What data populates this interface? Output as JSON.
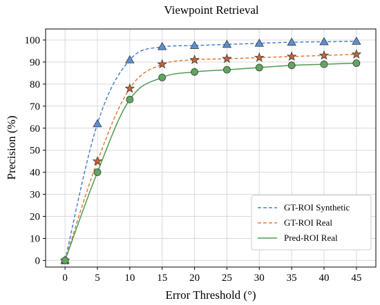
{
  "chart_data": {
    "type": "line",
    "title": "Viewpoint Retrieval",
    "xlabel": "Error Threshold (°)",
    "ylabel": "Precision (%)",
    "xlim": [
      -3,
      48
    ],
    "ylim": [
      -3,
      105
    ],
    "xticks": [
      0,
      5,
      10,
      15,
      20,
      25,
      30,
      35,
      40,
      45
    ],
    "yticks": [
      0,
      10,
      20,
      30,
      40,
      50,
      60,
      70,
      80,
      90,
      100
    ],
    "grid": true,
    "legend_position": "bottom-right",
    "x": [
      0,
      5,
      10,
      15,
      20,
      25,
      30,
      35,
      40,
      45
    ],
    "series": [
      {
        "name": "GT-ROI Synthetic",
        "values": [
          0,
          62,
          91,
          97,
          97.5,
          98,
          98.5,
          99,
          99.2,
          99.4
        ],
        "color": "#4a7fd0",
        "line_style": "dashed",
        "marker": "triangle",
        "marker_color": "#5b8fd1"
      },
      {
        "name": "GT-ROI Real",
        "values": [
          0,
          45,
          78,
          89,
          91,
          91.5,
          92,
          92.5,
          93,
          93.5
        ],
        "color": "#e07b39",
        "line_style": "dashed",
        "marker": "star",
        "marker_color": "#c86432"
      },
      {
        "name": "Pred-ROI Real",
        "values": [
          0,
          40,
          73,
          83,
          85.5,
          86.5,
          87.5,
          88.5,
          89,
          89.5
        ],
        "color": "#4e9a4e",
        "line_style": "solid",
        "marker": "circle",
        "marker_color": "#5fa65f"
      }
    ]
  }
}
